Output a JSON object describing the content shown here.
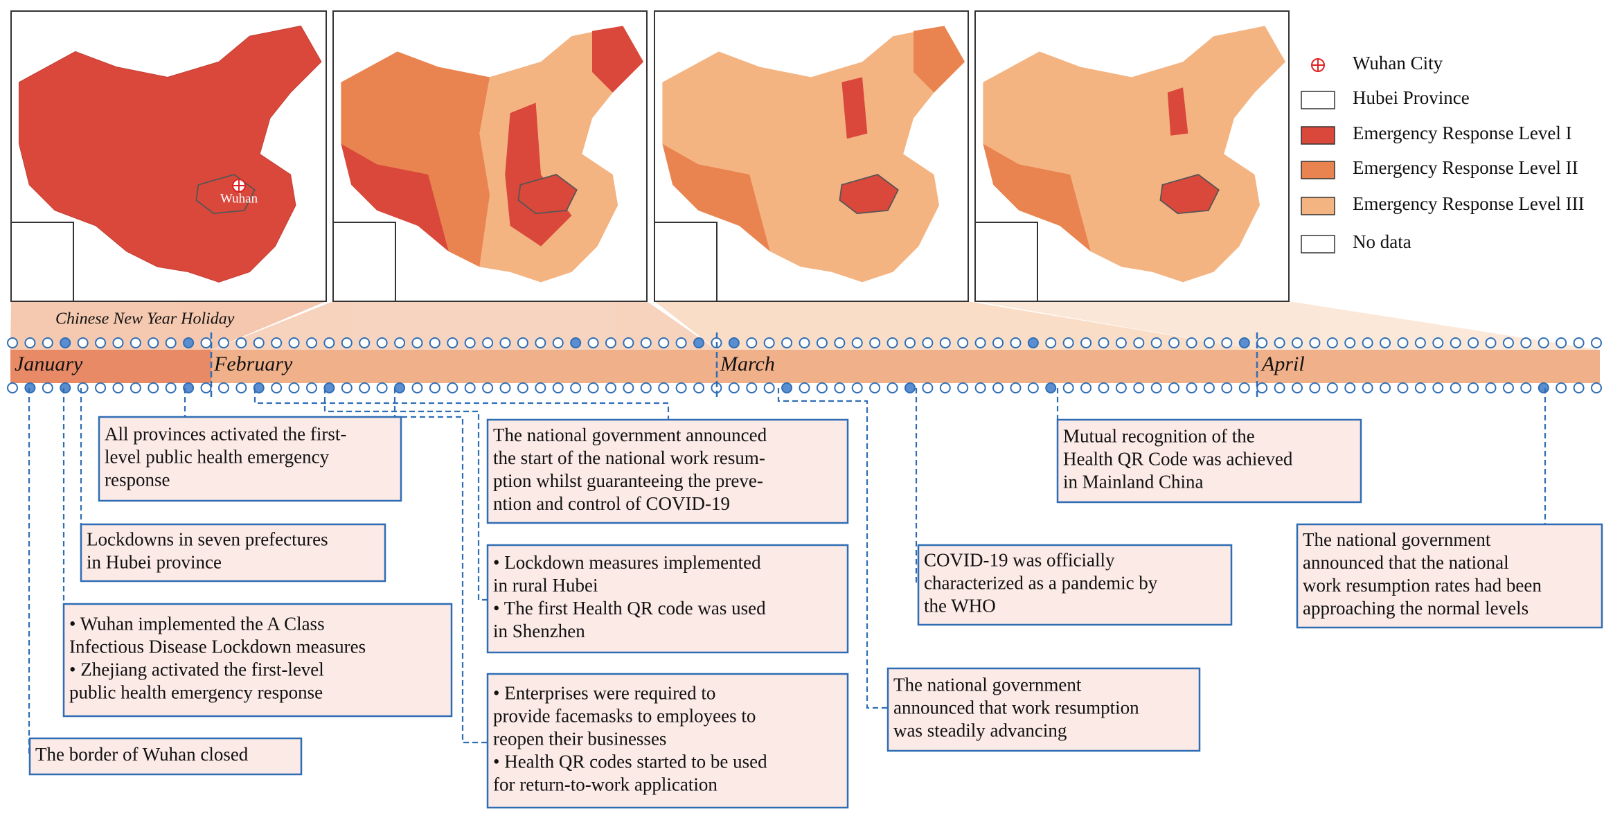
{
  "legend": [
    {
      "label": "Wuhan City"
    },
    {
      "label": "Hubei Province"
    },
    {
      "label": "Emergency Response Level I"
    },
    {
      "label": "Emergency Response Level II"
    },
    {
      "label": "Emergency Response Level III"
    },
    {
      "label": "No data"
    }
  ],
  "maps": {
    "wuhan_label": "Wuhan"
  },
  "timeline": {
    "holiday": "Chinese New Year Holiday",
    "months": [
      "January",
      "February",
      "March",
      "April"
    ]
  },
  "events": [
    {
      "lines": [
        "All provinces activated the first-",
        "level public health emergency",
        "response"
      ]
    },
    {
      "lines": [
        "Lockdowns in seven prefectures",
        "in Hubei province"
      ]
    },
    {
      "lines": [
        "• Wuhan implemented the A Class",
        "Infectious Disease Lockdown measures",
        "• Zhejiang activated the first-level",
        "public health emergency response"
      ]
    },
    {
      "lines": [
        "The border of Wuhan closed"
      ]
    },
    {
      "lines": [
        "The national government announced",
        "the start of the national work resum-",
        "ption whilst guaranteeing the preve-",
        "ntion and control of COVID-19"
      ]
    },
    {
      "lines": [
        "• Lockdown measures implemented",
        "in rural Hubei",
        "• The first Health QR code was used",
        "in Shenzhen"
      ]
    },
    {
      "lines": [
        "• Enterprises were required to",
        "provide facemasks to employees to",
        "reopen their businesses",
        "• Health QR codes started to be used",
        "for return-to-work application"
      ]
    },
    {
      "lines": [
        "Mutual recognition of the",
        "Health QR Code was achieved",
        "in Mainland China"
      ]
    },
    {
      "lines": [
        "COVID-19 was officially",
        "characterized as a pandemic by",
        "the WHO"
      ]
    },
    {
      "lines": [
        "The national government",
        "announced that work resumption",
        "was steadily advancing"
      ]
    },
    {
      "lines": [
        "The national government",
        "announced that the national",
        "work resumption rates had been",
        "approaching the normal levels"
      ]
    }
  ]
}
